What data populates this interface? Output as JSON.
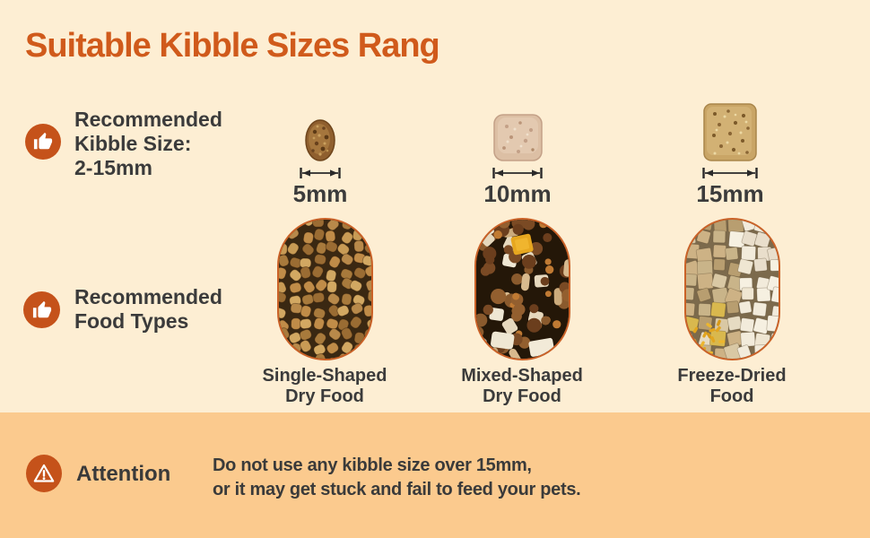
{
  "title": "Suitable Kibble Sizes Rang",
  "kibble_size_section": {
    "heading_lines": [
      "Recommended",
      "Kibble Size:",
      "2-15mm"
    ],
    "items": [
      {
        "label": "5mm"
      },
      {
        "label": "10mm"
      },
      {
        "label": "15mm"
      }
    ]
  },
  "food_types_section": {
    "heading_lines": [
      "Recommended",
      "Food Types"
    ],
    "items": [
      {
        "caption_lines": [
          "Single-Shaped",
          "Dry Food"
        ]
      },
      {
        "caption_lines": [
          "Mixed-Shaped",
          "Dry Food"
        ]
      },
      {
        "caption_lines": [
          "Freeze-Dried",
          "Food"
        ]
      }
    ]
  },
  "attention_section": {
    "label": "Attention",
    "message_lines": [
      "Do not use any kibble size over 15mm,",
      "or it may get stuck and fail to feed your pets."
    ]
  },
  "colors": {
    "background": "#FDEED3",
    "banner": "#FBCA8E",
    "title_orange": "#D05A1B",
    "icon_circle_orange": "#C5521A",
    "pill_border_orange": "#CA6228",
    "text_dark": "#3B3B3B"
  }
}
